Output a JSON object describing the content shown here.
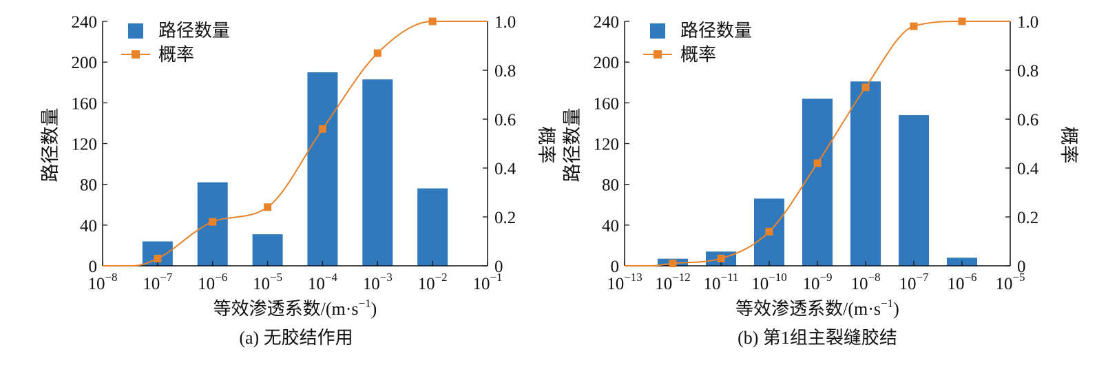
{
  "chart_data": [
    {
      "type": "bar",
      "caption": "(a)  无胶结作用",
      "x_scale": "log",
      "x_ticks": [
        -8,
        -7,
        -6,
        -5,
        -4,
        -3,
        -2,
        -1
      ],
      "xlabel": "等效渗透系数/(m·s⁻¹)",
      "ylabel": "路径数量",
      "y2label": "概率",
      "ylim": [
        0,
        240
      ],
      "yticks": [
        0,
        40,
        80,
        120,
        160,
        200,
        240
      ],
      "y2lim": [
        0,
        1.0
      ],
      "y2ticks": [
        0,
        0.2,
        0.4,
        0.6,
        0.8,
        1.0
      ],
      "grid": false,
      "legend": {
        "position": "top-left",
        "entries": [
          "路径数量",
          "概率"
        ]
      },
      "series": [
        {
          "name": "路径数量",
          "kind": "bar",
          "color": "#3079BD",
          "x": [
            -7,
            -6,
            -5,
            -4,
            -3,
            -2
          ],
          "values": [
            24,
            82,
            31,
            190,
            183,
            76
          ]
        },
        {
          "name": "概率",
          "kind": "line",
          "axis": "right",
          "color": "#E8832A",
          "x": [
            -7,
            -6,
            -5,
            -4,
            -3,
            -2
          ],
          "values": [
            0.03,
            0.18,
            0.24,
            0.56,
            0.87,
            1.0
          ]
        }
      ]
    },
    {
      "type": "bar",
      "caption": "(b)  第1组主裂缝胶结",
      "x_scale": "log",
      "x_ticks": [
        -13,
        -12,
        -11,
        -10,
        -9,
        -8,
        -7,
        -6,
        -5
      ],
      "xlabel": "等效渗透系数/(m·s⁻¹)",
      "ylabel": "路径数量",
      "y2label": "概率",
      "ylim": [
        0,
        240
      ],
      "yticks": [
        0,
        40,
        80,
        120,
        160,
        200,
        240
      ],
      "y2lim": [
        0,
        1.0
      ],
      "y2ticks": [
        0,
        0.2,
        0.4,
        0.6,
        0.8,
        1.0
      ],
      "grid": false,
      "legend": {
        "position": "top-left",
        "entries": [
          "路径数量",
          "概率"
        ]
      },
      "series": [
        {
          "name": "路径数量",
          "kind": "bar",
          "color": "#3079BD",
          "x": [
            -12,
            -11,
            -10,
            -9,
            -8,
            -7,
            -6
          ],
          "values": [
            7,
            14,
            66,
            164,
            181,
            148,
            8
          ]
        },
        {
          "name": "概率",
          "kind": "line",
          "axis": "right",
          "color": "#E8832A",
          "x": [
            -12,
            -11,
            -10,
            -9,
            -8,
            -7,
            -6
          ],
          "values": [
            0.01,
            0.03,
            0.14,
            0.42,
            0.73,
            0.98,
            1.0
          ]
        }
      ]
    }
  ]
}
